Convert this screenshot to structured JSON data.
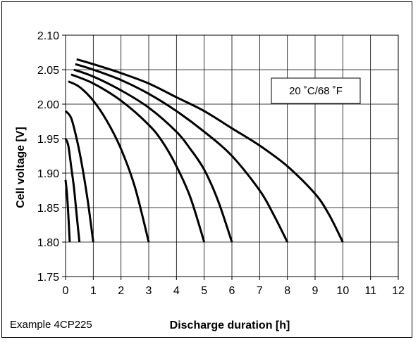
{
  "chart_data": {
    "type": "line",
    "title": "",
    "xlabel": "Discharge duration [h]",
    "ylabel": "Cell voltage [V]",
    "xlim": [
      0,
      12
    ],
    "ylim": [
      1.75,
      2.1
    ],
    "xticks": [
      0,
      1,
      2,
      3,
      4,
      5,
      6,
      7,
      8,
      9,
      10,
      11,
      12
    ],
    "yticks": [
      1.75,
      1.8,
      1.85,
      1.9,
      1.95,
      2.0,
      2.05,
      2.1
    ],
    "ytick_labels": [
      "1.75",
      "1.80",
      "1.85",
      "1.90",
      "1.95",
      "2.00",
      "2.05",
      "2.10"
    ],
    "grid": true,
    "legend": "none",
    "annotation": "20 ˚C/68 ˚F",
    "series": [
      {
        "x": [
          0,
          0.05,
          0.1,
          0.15
        ],
        "y": [
          1.89,
          1.87,
          1.84,
          1.8
        ]
      },
      {
        "x": [
          0,
          0.1,
          0.2,
          0.3,
          0.4,
          0.5
        ],
        "y": [
          1.95,
          1.94,
          1.91,
          1.88,
          1.84,
          1.8
        ]
      },
      {
        "x": [
          0,
          0.2,
          0.4,
          0.6,
          0.8,
          1.0
        ],
        "y": [
          1.99,
          1.98,
          1.95,
          1.91,
          1.86,
          1.8
        ]
      },
      {
        "x": [
          0.1,
          0.5,
          1.0,
          1.5,
          2.0,
          2.5,
          3.0
        ],
        "y": [
          2.033,
          2.025,
          2.005,
          1.975,
          1.935,
          1.88,
          1.8
        ]
      },
      {
        "x": [
          0.2,
          1.0,
          2.0,
          3.0,
          3.5,
          4.0,
          4.5,
          5.0
        ],
        "y": [
          2.043,
          2.03,
          2.005,
          1.97,
          1.945,
          1.91,
          1.865,
          1.8
        ]
      },
      {
        "x": [
          0.3,
          1.0,
          2.0,
          3.0,
          4.0,
          4.5,
          5.0,
          5.5,
          6.0
        ],
        "y": [
          2.05,
          2.04,
          2.02,
          1.995,
          1.96,
          1.935,
          1.905,
          1.86,
          1.8
        ]
      },
      {
        "x": [
          0.35,
          1.0,
          2.0,
          3.0,
          4.0,
          5.0,
          6.0,
          7.0,
          7.5,
          8.0
        ],
        "y": [
          2.058,
          2.05,
          2.035,
          2.015,
          1.99,
          1.96,
          1.925,
          1.875,
          1.84,
          1.8
        ]
      },
      {
        "x": [
          0.4,
          1.0,
          2.0,
          3.0,
          4.0,
          5.0,
          6.0,
          7.0,
          8.0,
          9.0,
          9.5,
          10.0
        ],
        "y": [
          2.065,
          2.058,
          2.045,
          2.03,
          2.01,
          1.99,
          1.965,
          1.94,
          1.91,
          1.87,
          1.84,
          1.8
        ]
      }
    ]
  },
  "footer": {
    "example": "Example 4CP225"
  }
}
